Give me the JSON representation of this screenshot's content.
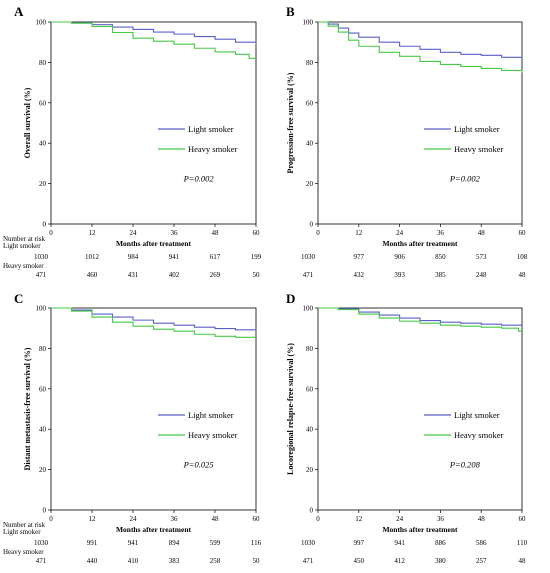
{
  "chart_data": [
    {
      "panel_label": "A",
      "type": "line",
      "xlabel": "Months after treatment",
      "ylabel": "Overall survival (%)",
      "xlim": [
        0,
        60
      ],
      "ylim": [
        0,
        100
      ],
      "x_ticks": [
        0,
        12,
        24,
        36,
        48,
        60
      ],
      "y_ticks": [
        0,
        20,
        40,
        60,
        80,
        100
      ],
      "legend_position": "right",
      "annotation": "P=0.002",
      "series": [
        {
          "name": "Light smoker",
          "color": "#5a5fc8",
          "x": [
            0,
            6,
            12,
            18,
            24,
            30,
            36,
            42,
            48,
            54,
            60
          ],
          "y": [
            100,
            99.6,
            98.7,
            97.5,
            96.3,
            95,
            94,
            92.8,
            91.5,
            90,
            89
          ]
        },
        {
          "name": "Heavy smoker",
          "color": "#44c844",
          "x": [
            0,
            6,
            12,
            18,
            24,
            30,
            36,
            42,
            48,
            54,
            58,
            60
          ],
          "y": [
            100,
            99.4,
            97.8,
            94.8,
            92,
            90.5,
            89,
            87,
            85.2,
            84,
            82,
            82
          ]
        }
      ],
      "risk_table": {
        "header": "Number at risk",
        "rows": [
          {
            "label": "Light smoker",
            "values": [
              "1030",
              "1012",
              "984",
              "941",
              "617",
              "199"
            ]
          },
          {
            "label": "Heavy smoker",
            "values": [
              "471",
              "460",
              "431",
              "402",
              "269",
              "50"
            ]
          }
        ]
      }
    },
    {
      "panel_label": "B",
      "type": "line",
      "xlabel": "Months after treatment",
      "ylabel": "Progression-free survival (%)",
      "xlim": [
        0,
        60
      ],
      "ylim": [
        0,
        100
      ],
      "x_ticks": [
        0,
        12,
        24,
        36,
        48,
        60
      ],
      "y_ticks": [
        0,
        20,
        40,
        60,
        80,
        100
      ],
      "legend_position": "right",
      "annotation": "P=0.002",
      "series": [
        {
          "name": "Light smoker",
          "color": "#5a5fc8",
          "x": [
            0,
            3,
            6,
            9,
            12,
            18,
            24,
            30,
            36,
            42,
            48,
            54,
            60
          ],
          "y": [
            100,
            99,
            97,
            94.5,
            92.5,
            90,
            88,
            86.5,
            85,
            84,
            83.5,
            82.5,
            82
          ]
        },
        {
          "name": "Heavy smoker",
          "color": "#44c844",
          "x": [
            0,
            3,
            6,
            9,
            12,
            18,
            24,
            30,
            36,
            42,
            48,
            54,
            60
          ],
          "y": [
            100,
            98,
            95,
            91,
            88,
            85,
            83,
            80.5,
            79,
            78,
            77,
            76,
            75
          ]
        }
      ],
      "risk_table": {
        "header": "",
        "rows": [
          {
            "label": "",
            "values": [
              "1030",
              "977",
              "906",
              "850",
              "573",
              "108"
            ]
          },
          {
            "label": "",
            "values": [
              "471",
              "432",
              "393",
              "385",
              "248",
              "48"
            ]
          }
        ]
      }
    },
    {
      "panel_label": "C",
      "type": "line",
      "xlabel": "Months after treatment",
      "ylabel": "Distant metastasis-free survival (%)",
      "xlim": [
        0,
        60
      ],
      "ylim": [
        0,
        100
      ],
      "x_ticks": [
        0,
        12,
        24,
        36,
        48,
        60
      ],
      "y_ticks": [
        0,
        20,
        40,
        60,
        80,
        100
      ],
      "legend_position": "right",
      "annotation": "P=0.025",
      "series": [
        {
          "name": "Light smoker",
          "color": "#5a5fc8",
          "x": [
            0,
            6,
            12,
            18,
            24,
            30,
            36,
            42,
            48,
            54,
            60
          ],
          "y": [
            100,
            99,
            97,
            95.5,
            94,
            92.5,
            91.5,
            90.5,
            89.8,
            89.2,
            89
          ]
        },
        {
          "name": "Heavy smoker",
          "color": "#44c844",
          "x": [
            0,
            6,
            12,
            18,
            24,
            30,
            36,
            42,
            48,
            54,
            60
          ],
          "y": [
            100,
            98.5,
            95.5,
            93,
            91,
            89.5,
            88.5,
            87,
            86,
            85.5,
            85.5
          ]
        }
      ],
      "risk_table": {
        "header": "Number at risk",
        "rows": [
          {
            "label": "Light smoker",
            "values": [
              "1030",
              "991",
              "941",
              "894",
              "599",
              "116"
            ]
          },
          {
            "label": "Heavy smoker",
            "values": [
              "471",
              "440",
              "410",
              "383",
              "258",
              "50"
            ]
          }
        ]
      }
    },
    {
      "panel_label": "D",
      "type": "line",
      "xlabel": "Months after treatment",
      "ylabel": "Locoregional relapse-free survival (%)",
      "xlim": [
        0,
        60
      ],
      "ylim": [
        0,
        100
      ],
      "x_ticks": [
        0,
        12,
        24,
        36,
        48,
        60
      ],
      "y_ticks": [
        0,
        20,
        40,
        60,
        80,
        100
      ],
      "legend_position": "right",
      "annotation": "P=0.208",
      "series": [
        {
          "name": "Light smoker",
          "color": "#5a5fc8",
          "x": [
            0,
            6,
            12,
            18,
            24,
            30,
            36,
            42,
            48,
            54,
            60
          ],
          "y": [
            100,
            99.6,
            98,
            96.5,
            95,
            93.8,
            93,
            92.5,
            92,
            91.5,
            91.2
          ]
        },
        {
          "name": "Heavy smoker",
          "color": "#44c844",
          "x": [
            0,
            6,
            12,
            18,
            24,
            30,
            36,
            42,
            48,
            54,
            59,
            60
          ],
          "y": [
            100,
            99.2,
            97,
            95,
            93.5,
            92.5,
            91.5,
            91,
            90.5,
            90,
            88.5,
            88.5
          ]
        }
      ],
      "risk_table": {
        "header": "",
        "rows": [
          {
            "label": "",
            "values": [
              "1030",
              "997",
              "941",
              "886",
              "586",
              "110"
            ]
          },
          {
            "label": "",
            "values": [
              "471",
              "450",
              "412",
              "380",
              "257",
              "48"
            ]
          }
        ]
      }
    }
  ]
}
